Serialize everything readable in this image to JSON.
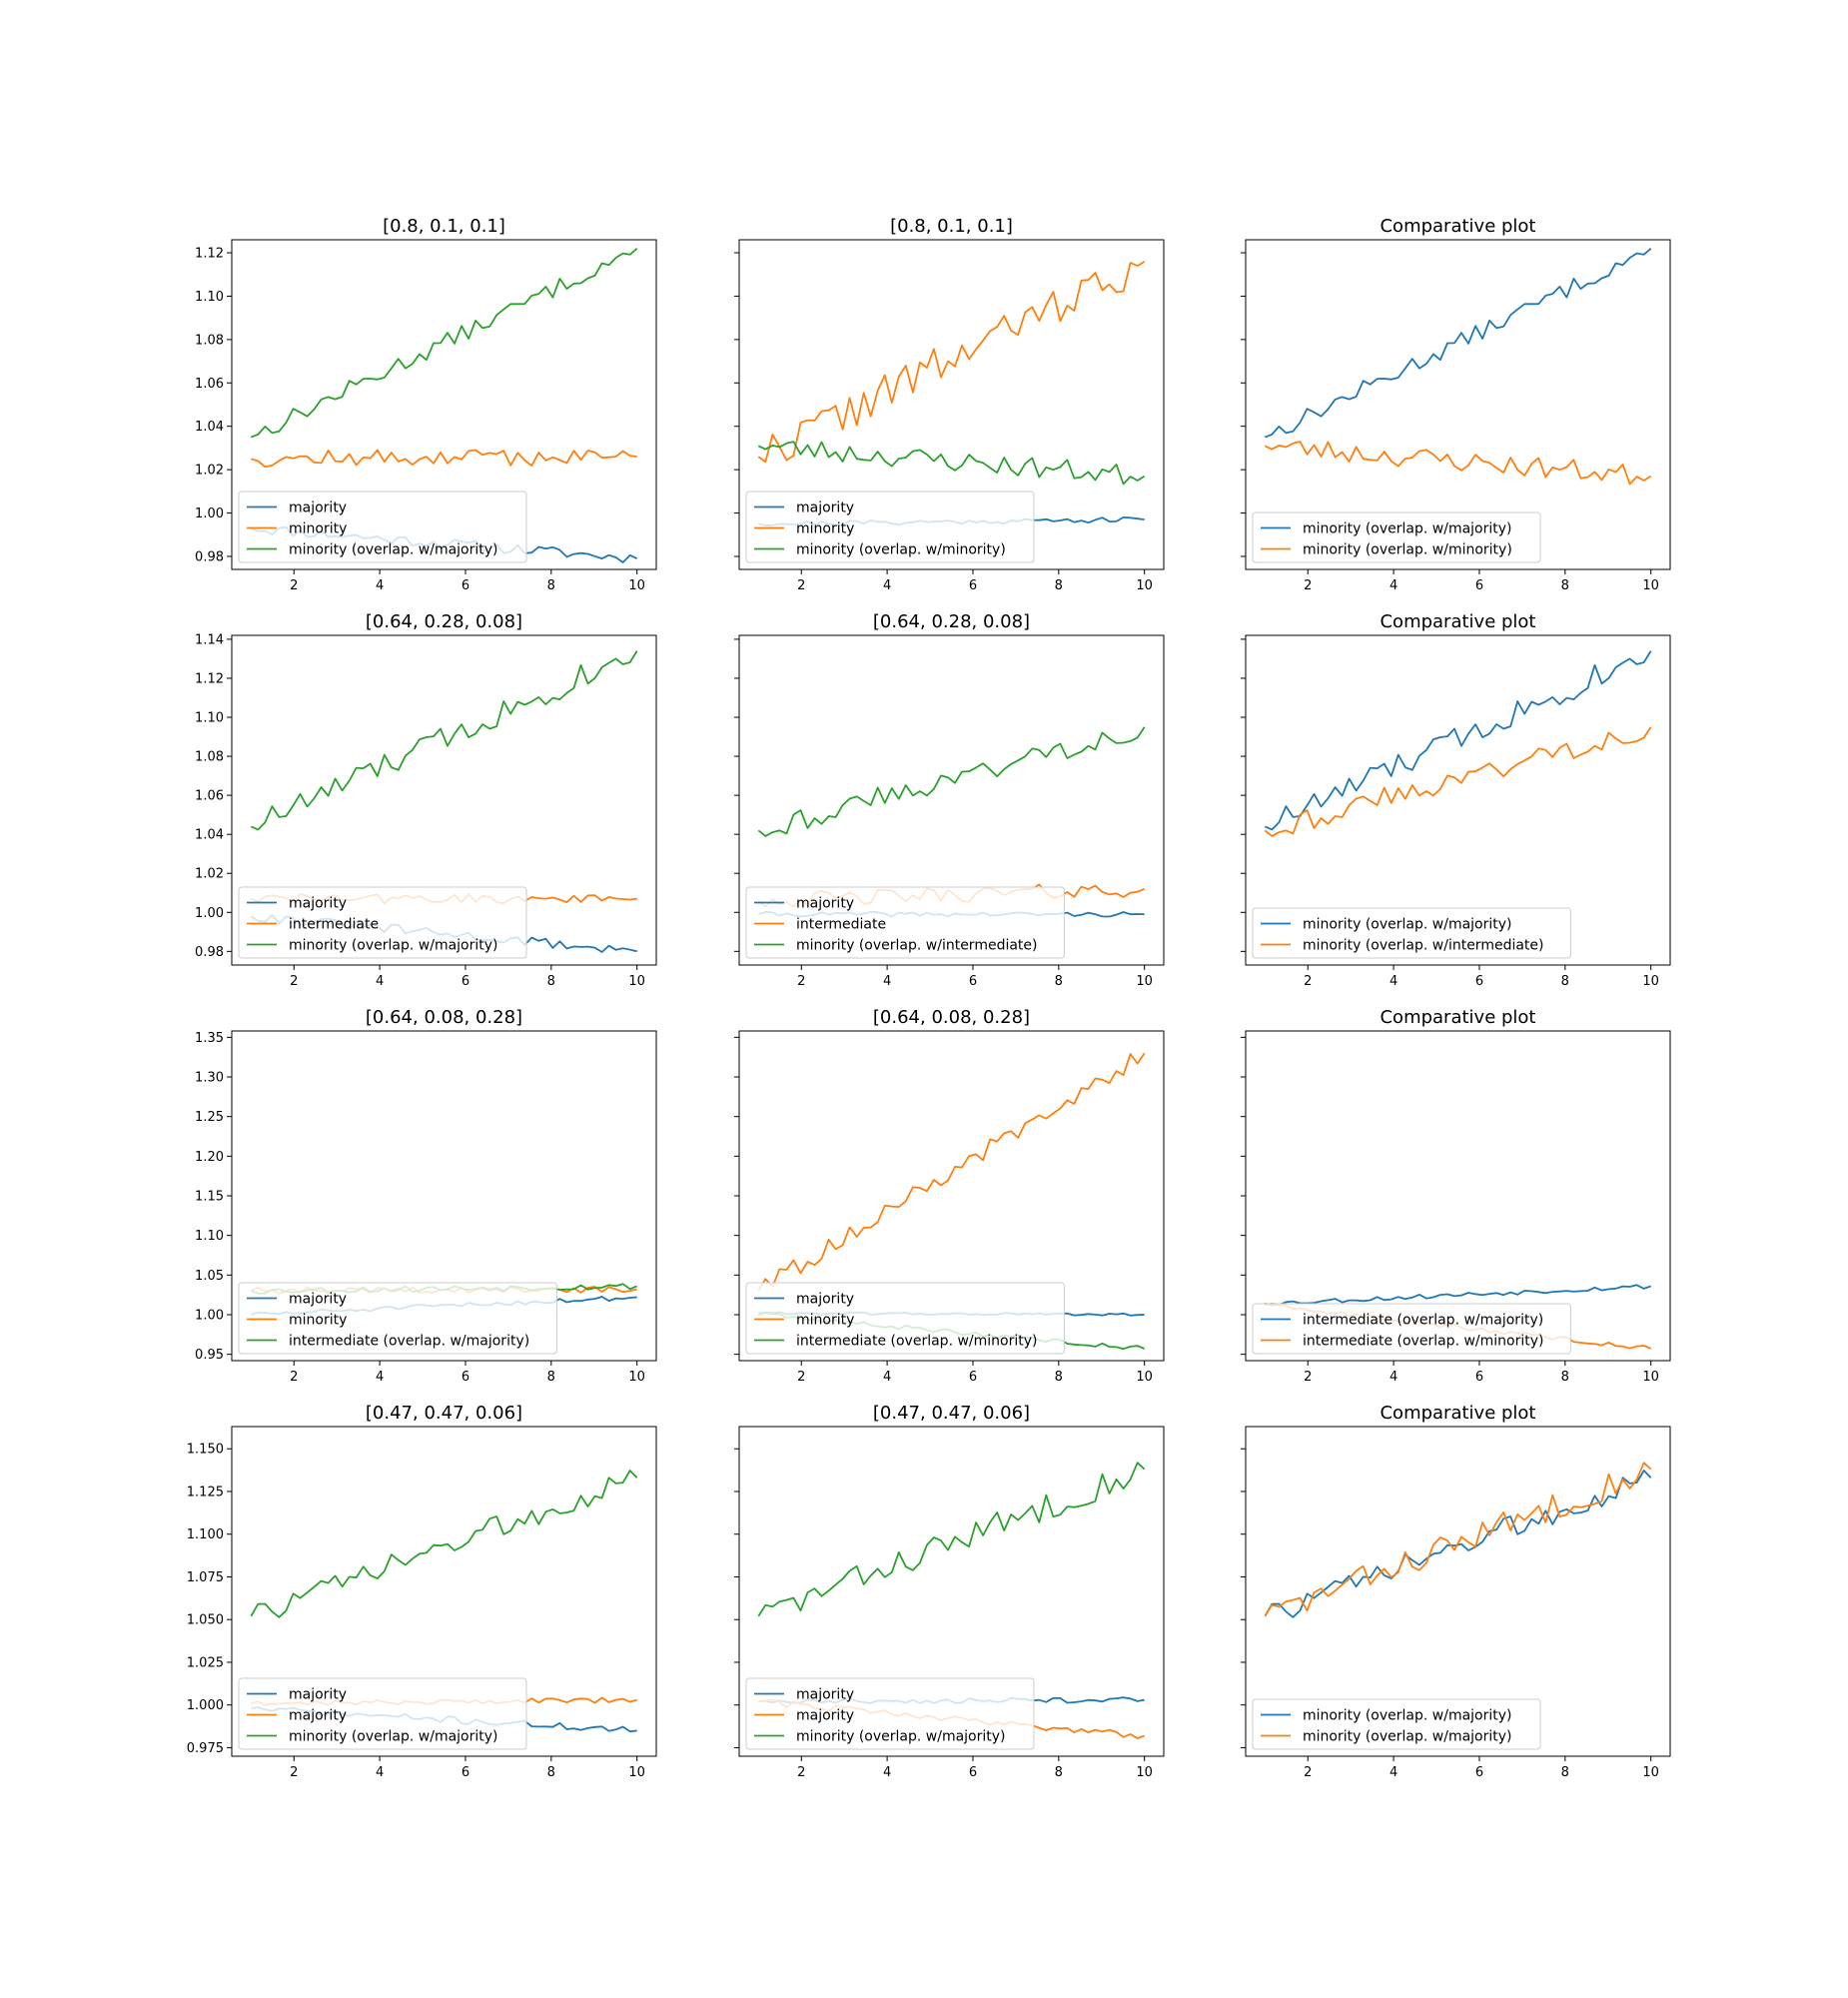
{
  "colors": {
    "tab_blue": "#1f77b4",
    "tab_orange": "#ff7f0e",
    "tab_green": "#2ca02c"
  },
  "chart_data": [
    {
      "type": "line",
      "title": "[0.8, 0.1, 0.1]",
      "xlim": [
        0.55,
        10.45
      ],
      "ylim": [
        0.974,
        1.126
      ],
      "yticks": [
        0.98,
        1.0,
        1.02,
        1.04,
        1.06,
        1.08,
        1.1,
        1.12
      ],
      "ytick_labels": [
        "0.98",
        "1.00",
        "1.02",
        "1.04",
        "1.06",
        "1.08",
        "1.10",
        "1.12"
      ],
      "xticks": [
        2,
        4,
        6,
        8,
        10
      ],
      "xtick_labels": [
        "2",
        "4",
        "6",
        "8",
        "10"
      ],
      "legend_loc": "lower left",
      "series": [
        {
          "name": "majority",
          "color": "#1f77b4",
          "start": 0.993,
          "end": 0.979,
          "jitter": 0.0025,
          "seed": 11
        },
        {
          "name": "minority",
          "color": "#ff7f0e",
          "start": 1.025,
          "end": 1.026,
          "jitter": 0.004,
          "seed": 12
        },
        {
          "name": "minority (overlap. w/majority)",
          "color": "#2ca02c",
          "start": 1.035,
          "end": 1.122,
          "jitter": 0.004,
          "seed": 13
        }
      ]
    },
    {
      "type": "line",
      "title": "[0.8, 0.1, 0.1]",
      "xlim": [
        0.55,
        10.45
      ],
      "ylim": [
        0.974,
        1.126
      ],
      "yticks": [
        0.98,
        1.0,
        1.02,
        1.04,
        1.06,
        1.08,
        1.1,
        1.12
      ],
      "ytick_labels": [],
      "xticks": [
        2,
        4,
        6,
        8,
        10
      ],
      "xtick_labels": [
        "2",
        "4",
        "6",
        "8",
        "10"
      ],
      "legend_loc": "lower left",
      "series": [
        {
          "name": "majority",
          "color": "#1f77b4",
          "start": 0.995,
          "end": 0.997,
          "jitter": 0.0012,
          "seed": 21
        },
        {
          "name": "minority",
          "color": "#ff7f0e",
          "start": 1.026,
          "end": 1.116,
          "jitter": 0.009,
          "seed": 22
        },
        {
          "name": "minority (overlap. w/minority)",
          "color": "#2ca02c",
          "start": 1.031,
          "end": 1.017,
          "jitter": 0.005,
          "seed": 23
        }
      ]
    },
    {
      "type": "line",
      "title": "Comparative plot",
      "xlim": [
        0.55,
        10.45
      ],
      "ylim": [
        0.974,
        1.126
      ],
      "yticks": [
        0.98,
        1.0,
        1.02,
        1.04,
        1.06,
        1.08,
        1.1,
        1.12
      ],
      "ytick_labels": [],
      "xticks": [
        2,
        4,
        6,
        8,
        10
      ],
      "xtick_labels": [
        "2",
        "4",
        "6",
        "8",
        "10"
      ],
      "legend_loc": "lower left",
      "series": [
        {
          "name": "minority (overlap. w/majority)",
          "color": "#1f77b4",
          "start": 1.035,
          "end": 1.122,
          "jitter": 0.004,
          "seed": 13
        },
        {
          "name": "minority (overlap. w/minority)",
          "color": "#ff7f0e",
          "start": 1.031,
          "end": 1.017,
          "jitter": 0.005,
          "seed": 23
        }
      ]
    },
    {
      "type": "line",
      "title": "[0.64, 0.28, 0.08]",
      "xlim": [
        0.55,
        10.45
      ],
      "ylim": [
        0.973,
        1.142
      ],
      "yticks": [
        0.98,
        1.0,
        1.02,
        1.04,
        1.06,
        1.08,
        1.1,
        1.12,
        1.14
      ],
      "ytick_labels": [
        "0.98",
        "1.00",
        "1.02",
        "1.04",
        "1.06",
        "1.08",
        "1.10",
        "1.12",
        "1.14"
      ],
      "xticks": [
        2,
        4,
        6,
        8,
        10
      ],
      "xtick_labels": [
        "2",
        "4",
        "6",
        "8",
        "10"
      ],
      "legend_loc": "lower left",
      "series": [
        {
          "name": "majority",
          "color": "#1f77b4",
          "start": 0.998,
          "end": 0.98,
          "jitter": 0.0025,
          "seed": 31
        },
        {
          "name": "intermediate",
          "color": "#ff7f0e",
          "start": 1.007,
          "end": 1.007,
          "jitter": 0.0025,
          "seed": 32
        },
        {
          "name": "minority (overlap. w/majority)",
          "color": "#2ca02c",
          "start": 1.044,
          "end": 1.134,
          "jitter": 0.007,
          "seed": 33
        }
      ]
    },
    {
      "type": "line",
      "title": "[0.64, 0.28, 0.08]",
      "xlim": [
        0.55,
        10.45
      ],
      "ylim": [
        0.973,
        1.142
      ],
      "yticks": [
        0.98,
        1.0,
        1.02,
        1.04,
        1.06,
        1.08,
        1.1,
        1.12,
        1.14
      ],
      "ytick_labels": [],
      "xticks": [
        2,
        4,
        6,
        8,
        10
      ],
      "xtick_labels": [
        "2",
        "4",
        "6",
        "8",
        "10"
      ],
      "legend_loc": "lower left",
      "series": [
        {
          "name": "majority",
          "color": "#1f77b4",
          "start": 0.999,
          "end": 0.999,
          "jitter": 0.0012,
          "seed": 41
        },
        {
          "name": "intermediate",
          "color": "#ff7f0e",
          "start": 1.006,
          "end": 1.012,
          "jitter": 0.004,
          "seed": 42
        },
        {
          "name": "minority (overlap. w/intermediate)",
          "color": "#2ca02c",
          "start": 1.042,
          "end": 1.095,
          "jitter": 0.006,
          "seed": 43
        }
      ]
    },
    {
      "type": "line",
      "title": "Comparative plot",
      "xlim": [
        0.55,
        10.45
      ],
      "ylim": [
        0.973,
        1.142
      ],
      "yticks": [
        0.98,
        1.0,
        1.02,
        1.04,
        1.06,
        1.08,
        1.1,
        1.12,
        1.14
      ],
      "ytick_labels": [],
      "xticks": [
        2,
        4,
        6,
        8,
        10
      ],
      "xtick_labels": [
        "2",
        "4",
        "6",
        "8",
        "10"
      ],
      "legend_loc": "lower left",
      "series": [
        {
          "name": "minority (overlap. w/majority)",
          "color": "#1f77b4",
          "start": 1.044,
          "end": 1.134,
          "jitter": 0.007,
          "seed": 33
        },
        {
          "name": "minority (overlap. w/intermediate)",
          "color": "#ff7f0e",
          "start": 1.042,
          "end": 1.095,
          "jitter": 0.006,
          "seed": 43
        }
      ]
    },
    {
      "type": "line",
      "title": "[0.64, 0.08, 0.28]",
      "xlim": [
        0.55,
        10.45
      ],
      "ylim": [
        0.942,
        1.358
      ],
      "yticks": [
        0.95,
        1.0,
        1.05,
        1.1,
        1.15,
        1.2,
        1.25,
        1.3,
        1.35
      ],
      "ytick_labels": [
        "0.95",
        "1.00",
        "1.05",
        "1.10",
        "1.15",
        "1.20",
        "1.25",
        "1.30",
        "1.35"
      ],
      "xticks": [
        2,
        4,
        6,
        8,
        10
      ],
      "xtick_labels": [
        "2",
        "4",
        "6",
        "8",
        "10"
      ],
      "legend_loc": "lower left",
      "series": [
        {
          "name": "majority",
          "color": "#1f77b4",
          "start": 1.0,
          "end": 1.022,
          "jitter": 0.003,
          "seed": 51
        },
        {
          "name": "minority",
          "color": "#ff7f0e",
          "start": 1.03,
          "end": 1.032,
          "jitter": 0.004,
          "seed": 52
        },
        {
          "name": "intermediate (overlap. w/majority)",
          "color": "#2ca02c",
          "start": 1.03,
          "end": 1.036,
          "jitter": 0.004,
          "seed": 53
        }
      ]
    },
    {
      "type": "line",
      "title": "[0.64, 0.08, 0.28]",
      "xlim": [
        0.55,
        10.45
      ],
      "ylim": [
        0.942,
        1.358
      ],
      "yticks": [
        0.95,
        1.0,
        1.05,
        1.1,
        1.15,
        1.2,
        1.25,
        1.3,
        1.35
      ],
      "ytick_labels": [],
      "xticks": [
        2,
        4,
        6,
        8,
        10
      ],
      "xtick_labels": [
        "2",
        "4",
        "6",
        "8",
        "10"
      ],
      "legend_loc": "lower left",
      "series": [
        {
          "name": "majority",
          "color": "#1f77b4",
          "start": 1.002,
          "end": 1.0,
          "jitter": 0.0015,
          "seed": 61
        },
        {
          "name": "minority",
          "color": "#ff7f0e",
          "start": 1.03,
          "end": 1.33,
          "jitter": 0.012,
          "seed": 62
        },
        {
          "name": "intermediate (overlap. w/minority)",
          "color": "#2ca02c",
          "start": 1.0,
          "end": 0.957,
          "jitter": 0.003,
          "seed": 63
        }
      ]
    },
    {
      "type": "line",
      "title": "Comparative plot",
      "xlim": [
        0.55,
        10.45
      ],
      "ylim": [
        0.942,
        1.358
      ],
      "yticks": [
        0.95,
        1.0,
        1.05,
        1.1,
        1.15,
        1.2,
        1.25,
        1.3,
        1.35
      ],
      "ytick_labels": [],
      "xticks": [
        2,
        4,
        6,
        8,
        10
      ],
      "xtick_labels": [
        "2",
        "4",
        "6",
        "8",
        "10"
      ],
      "legend_loc": "lower left",
      "series": [
        {
          "name": "intermediate (overlap. w/majority)",
          "color": "#1f77b4",
          "start": 1.014,
          "end": 1.036,
          "jitter": 0.003,
          "seed": 53
        },
        {
          "name": "intermediate (overlap. w/minority)",
          "color": "#ff7f0e",
          "start": 1.012,
          "end": 0.957,
          "jitter": 0.003,
          "seed": 63
        }
      ]
    },
    {
      "type": "line",
      "title": "[0.47, 0.47, 0.06]",
      "xlim": [
        0.55,
        10.45
      ],
      "ylim": [
        0.97,
        1.163
      ],
      "yticks": [
        0.975,
        1.0,
        1.025,
        1.05,
        1.075,
        1.1,
        1.125,
        1.15
      ],
      "ytick_labels": [
        "0.975",
        "1.000",
        "1.025",
        "1.050",
        "1.075",
        "1.100",
        "1.125",
        "1.150"
      ],
      "xticks": [
        2,
        4,
        6,
        8,
        10
      ],
      "xtick_labels": [
        "2",
        "4",
        "6",
        "8",
        "10"
      ],
      "legend_loc": "lower left",
      "series": [
        {
          "name": "majority",
          "color": "#1f77b4",
          "start": 0.998,
          "end": 0.985,
          "jitter": 0.002,
          "seed": 71
        },
        {
          "name": "majority",
          "color": "#ff7f0e",
          "start": 1.001,
          "end": 1.003,
          "jitter": 0.0015,
          "seed": 72
        },
        {
          "name": "minority (overlap. w/majority)",
          "color": "#2ca02c",
          "start": 1.052,
          "end": 1.133,
          "jitter": 0.007,
          "seed": 73
        }
      ]
    },
    {
      "type": "line",
      "title": "[0.47, 0.47, 0.06]",
      "xlim": [
        0.55,
        10.45
      ],
      "ylim": [
        0.97,
        1.163
      ],
      "yticks": [
        0.975,
        1.0,
        1.025,
        1.05,
        1.075,
        1.1,
        1.125,
        1.15
      ],
      "ytick_labels": [],
      "xticks": [
        2,
        4,
        6,
        8,
        10
      ],
      "xtick_labels": [
        "2",
        "4",
        "6",
        "8",
        "10"
      ],
      "legend_loc": "lower left",
      "series": [
        {
          "name": "majority",
          "color": "#1f77b4",
          "start": 1.002,
          "end": 1.003,
          "jitter": 0.0015,
          "seed": 81
        },
        {
          "name": "majority",
          "color": "#ff7f0e",
          "start": 1.002,
          "end": 0.982,
          "jitter": 0.002,
          "seed": 82
        },
        {
          "name": "minority (overlap. w/majority)",
          "color": "#2ca02c",
          "start": 1.052,
          "end": 1.138,
          "jitter": 0.008,
          "seed": 83
        }
      ]
    },
    {
      "type": "line",
      "title": "Comparative plot",
      "xlim": [
        0.55,
        10.45
      ],
      "ylim": [
        0.97,
        1.163
      ],
      "yticks": [
        0.975,
        1.0,
        1.025,
        1.05,
        1.075,
        1.1,
        1.125,
        1.15
      ],
      "ytick_labels": [],
      "xticks": [
        2,
        4,
        6,
        8,
        10
      ],
      "xtick_labels": [
        "2",
        "4",
        "6",
        "8",
        "10"
      ],
      "legend_loc": "lower left",
      "series": [
        {
          "name": "minority (overlap. w/majority)",
          "color": "#1f77b4",
          "start": 1.052,
          "end": 1.133,
          "jitter": 0.007,
          "seed": 73
        },
        {
          "name": "minority (overlap. w/majority)",
          "color": "#ff7f0e",
          "start": 1.052,
          "end": 1.138,
          "jitter": 0.008,
          "seed": 83
        }
      ]
    }
  ]
}
